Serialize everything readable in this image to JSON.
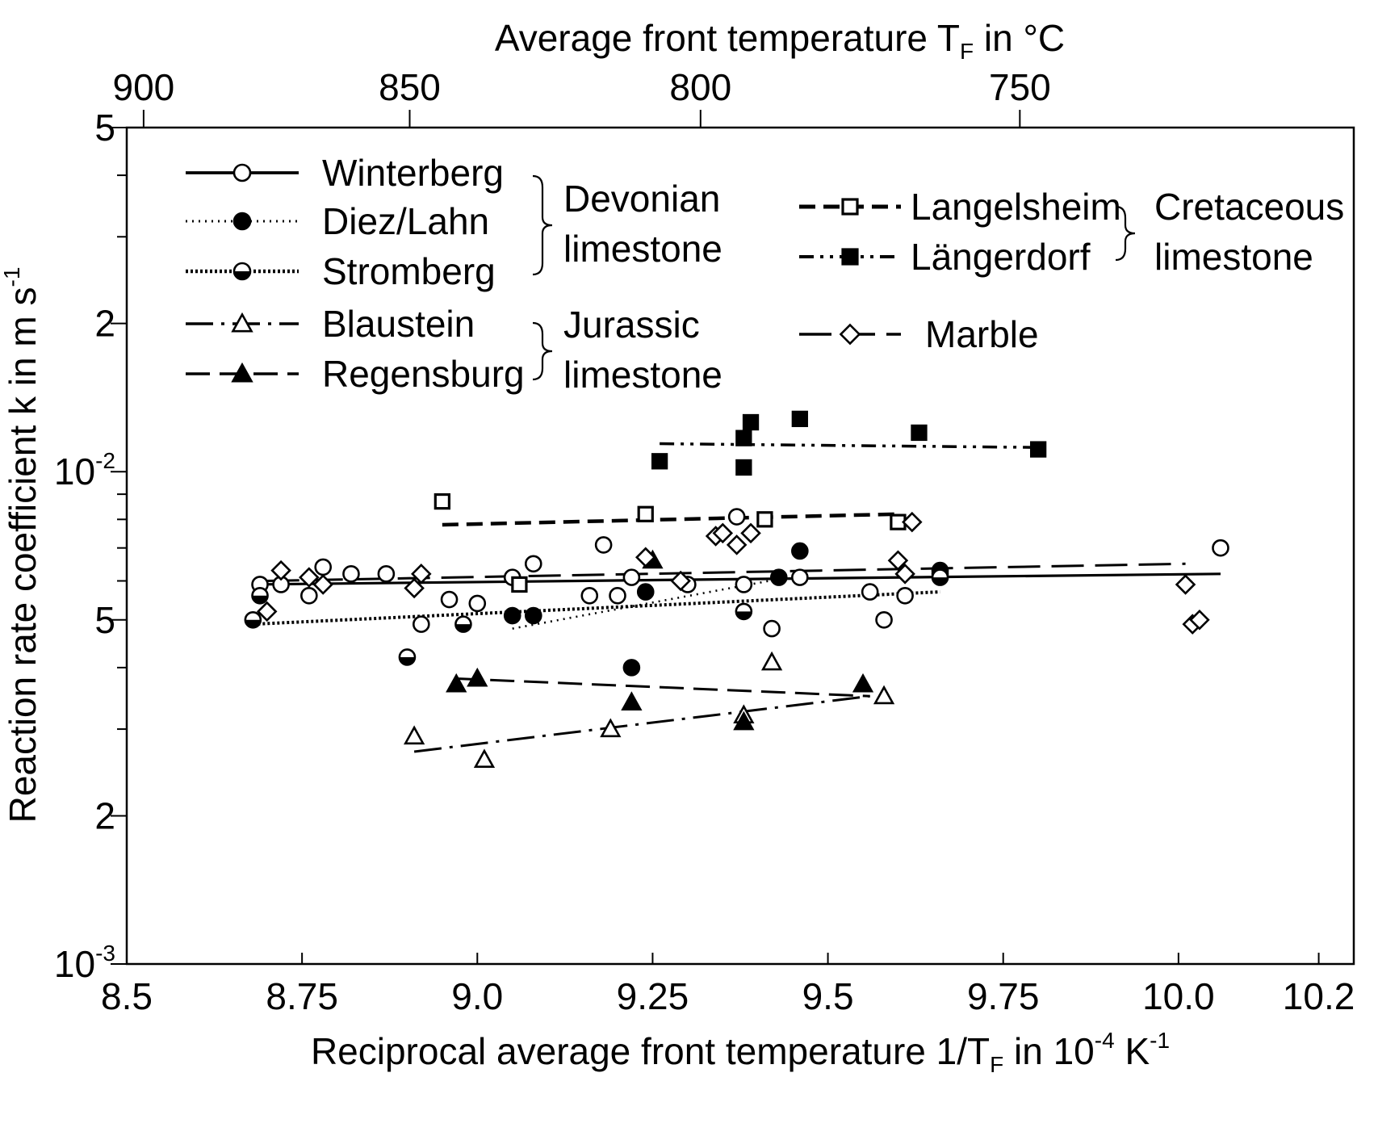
{
  "chart_data": {
    "type": "scatter",
    "x_axis": {
      "label_prefix": "Reciprocal average front temperature 1/T",
      "label_sub": "F",
      "label_mid": " in 10",
      "label_sup1": "-4",
      "label_mid2": " K",
      "label_sup2": "-1",
      "ticks": [
        "8.5",
        "8.75",
        "9.0",
        "9.25",
        "9.5",
        "9.75",
        "10.0",
        "10.2"
      ],
      "range": [
        8.5,
        10.25
      ]
    },
    "top_axis": {
      "label_prefix": "Average front temperature T",
      "label_sub": "F",
      "label_suffix": " in °C",
      "ticks": [
        "900",
        "850",
        "800",
        "750"
      ]
    },
    "y_axis": {
      "label_prefix": "Reaction rate coefficient k in m s",
      "label_sup": "-1",
      "scale": "log",
      "range": [
        0.001,
        0.05
      ],
      "major_labels": [
        {
          "value": 0.05,
          "base": "5",
          "sup": ""
        },
        {
          "value": 0.02,
          "base": "2",
          "sup": ""
        },
        {
          "value": 0.01,
          "base": "10",
          "sup": "-2"
        },
        {
          "value": 0.005,
          "base": "5",
          "sup": ""
        },
        {
          "value": 0.002,
          "base": "2",
          "sup": ""
        },
        {
          "value": 0.001,
          "base": "10",
          "sup": "-3"
        }
      ]
    },
    "legend": {
      "group_devonian": [
        "Devonian",
        "limestone"
      ],
      "group_jurassic": [
        "Jurassic",
        "limestone"
      ],
      "group_cretaceous": [
        "Cretaceous",
        "limestone"
      ]
    },
    "series": [
      {
        "name": "Winterberg",
        "marker": "circle-open",
        "line": "solid",
        "fit": [
          [
            8.68,
            0.0059
          ],
          [
            10.06,
            0.0062
          ]
        ],
        "points": [
          [
            8.69,
            0.0059
          ],
          [
            8.72,
            0.0059
          ],
          [
            8.76,
            0.0056
          ],
          [
            8.78,
            0.0064
          ],
          [
            8.82,
            0.0062
          ],
          [
            8.87,
            0.0062
          ],
          [
            8.92,
            0.0049
          ],
          [
            8.96,
            0.0055
          ],
          [
            9.0,
            0.0054
          ],
          [
            9.05,
            0.0061
          ],
          [
            9.08,
            0.0065
          ],
          [
            9.16,
            0.0056
          ],
          [
            9.18,
            0.0071
          ],
          [
            9.2,
            0.0056
          ],
          [
            9.22,
            0.0061
          ],
          [
            9.3,
            0.0059
          ],
          [
            9.37,
            0.0081
          ],
          [
            9.38,
            0.0059
          ],
          [
            9.42,
            0.0048
          ],
          [
            9.46,
            0.0061
          ],
          [
            9.56,
            0.0057
          ],
          [
            9.58,
            0.005
          ],
          [
            9.61,
            0.0056
          ],
          [
            9.66,
            0.0062
          ],
          [
            10.06,
            0.007
          ]
        ]
      },
      {
        "name": "Diez/Lahn",
        "marker": "circle-filled",
        "line": "dotted",
        "fit": [
          [
            9.05,
            0.0048
          ],
          [
            9.47,
            0.0062
          ]
        ],
        "points": [
          [
            9.05,
            0.0051
          ],
          [
            9.08,
            0.0051
          ],
          [
            9.22,
            0.004
          ],
          [
            9.24,
            0.0057
          ],
          [
            9.43,
            0.0061
          ],
          [
            9.46,
            0.0069
          ],
          [
            9.66,
            0.0063
          ]
        ]
      },
      {
        "name": "Stromberg",
        "marker": "circle-half",
        "line": "dense-dotted",
        "fit": [
          [
            8.68,
            0.0049
          ],
          [
            9.66,
            0.0057
          ]
        ],
        "points": [
          [
            8.68,
            0.005
          ],
          [
            8.69,
            0.0056
          ],
          [
            8.9,
            0.0042
          ],
          [
            8.98,
            0.0049
          ],
          [
            9.38,
            0.0052
          ],
          [
            9.66,
            0.0061
          ]
        ]
      },
      {
        "name": "Blaustein",
        "marker": "triangle-open",
        "line": "dash-dot",
        "fit": [
          [
            8.91,
            0.0027
          ],
          [
            9.56,
            0.0035
          ]
        ],
        "points": [
          [
            8.91,
            0.0029
          ],
          [
            9.01,
            0.0026
          ],
          [
            9.19,
            0.003
          ],
          [
            9.38,
            0.0032
          ],
          [
            9.42,
            0.0041
          ],
          [
            9.58,
            0.0035
          ]
        ]
      },
      {
        "name": "Regensburg",
        "marker": "triangle-filled",
        "line": "long-dash",
        "fit": [
          [
            8.97,
            0.0038
          ],
          [
            9.56,
            0.0035
          ]
        ],
        "points": [
          [
            8.97,
            0.0037
          ],
          [
            9.0,
            0.0038
          ],
          [
            9.22,
            0.0034
          ],
          [
            9.25,
            0.0066
          ],
          [
            9.38,
            0.0031
          ],
          [
            9.55,
            0.0037
          ]
        ]
      },
      {
        "name": "Langelsheim",
        "marker": "square-open",
        "line": "heavy-dash",
        "fit": [
          [
            8.95,
            0.0078
          ],
          [
            9.6,
            0.0082
          ]
        ],
        "points": [
          [
            8.95,
            0.0087
          ],
          [
            9.06,
            0.0059
          ],
          [
            9.24,
            0.0082
          ],
          [
            9.41,
            0.008
          ],
          [
            9.6,
            0.0079
          ]
        ]
      },
      {
        "name": "Längerdorf",
        "marker": "square-filled",
        "line": "dash-dot-dot",
        "fit": [
          [
            9.26,
            0.0114
          ],
          [
            9.8,
            0.0112
          ]
        ],
        "points": [
          [
            9.26,
            0.0105
          ],
          [
            9.38,
            0.0102
          ],
          [
            9.38,
            0.0117
          ],
          [
            9.39,
            0.0126
          ],
          [
            9.46,
            0.0128
          ],
          [
            9.63,
            0.012
          ],
          [
            9.8,
            0.0111
          ]
        ]
      },
      {
        "name": "Marble",
        "marker": "diamond-open",
        "line": "long-dash-gap",
        "fit": [
          [
            8.7,
            0.006
          ],
          [
            10.01,
            0.0065
          ]
        ],
        "points": [
          [
            8.7,
            0.0052
          ],
          [
            8.72,
            0.0063
          ],
          [
            8.76,
            0.0061
          ],
          [
            8.78,
            0.0059
          ],
          [
            8.91,
            0.0058
          ],
          [
            8.92,
            0.0062
          ],
          [
            9.24,
            0.0067
          ],
          [
            9.29,
            0.006
          ],
          [
            9.34,
            0.0074
          ],
          [
            9.35,
            0.0075
          ],
          [
            9.37,
            0.0071
          ],
          [
            9.39,
            0.0075
          ],
          [
            9.6,
            0.0066
          ],
          [
            9.61,
            0.0062
          ],
          [
            9.62,
            0.0079
          ],
          [
            10.01,
            0.0059
          ],
          [
            10.02,
            0.0049
          ],
          [
            10.03,
            0.005
          ]
        ]
      }
    ]
  }
}
